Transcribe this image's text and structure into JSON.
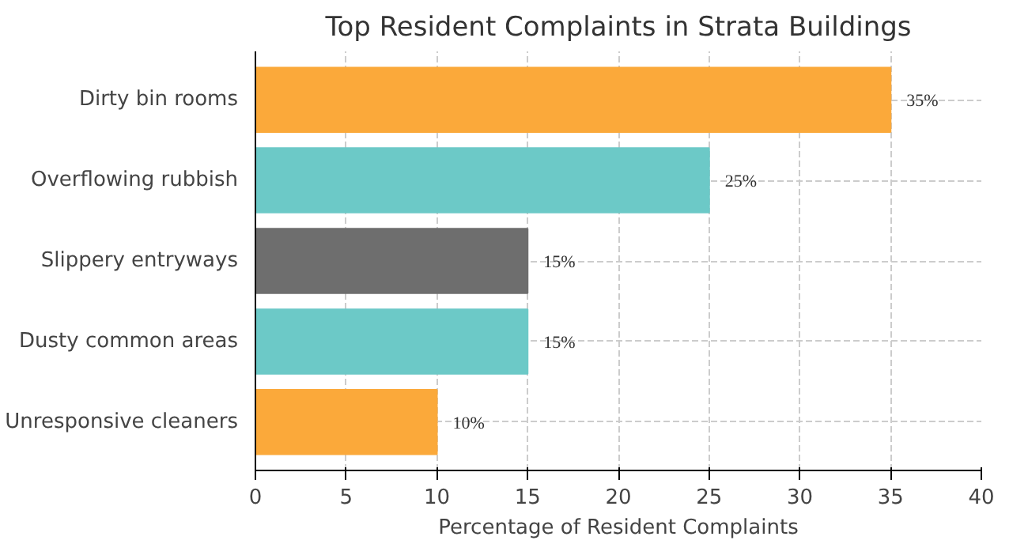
{
  "chart_data": {
    "type": "bar",
    "orientation": "horizontal",
    "title": "Top Resident Complaints in Strata Buildings",
    "xlabel": "Percentage of Resident Complaints",
    "categories": [
      "Dirty bin rooms",
      "Overflowing rubbish",
      "Slippery entryways",
      "Dusty common areas",
      "Unresponsive cleaners"
    ],
    "values": [
      35,
      25,
      15,
      15,
      10
    ],
    "colors": [
      "#fba93a",
      "#6cc9c7",
      "#6e6e6e",
      "#6cc9c7",
      "#fba93a"
    ],
    "value_labels": [
      "35%",
      "25%",
      "15%",
      "15%",
      "10%"
    ],
    "xlim": [
      0,
      40
    ],
    "xticks": [
      0,
      5,
      10,
      15,
      20,
      25,
      30,
      35,
      40
    ],
    "grid": true
  }
}
